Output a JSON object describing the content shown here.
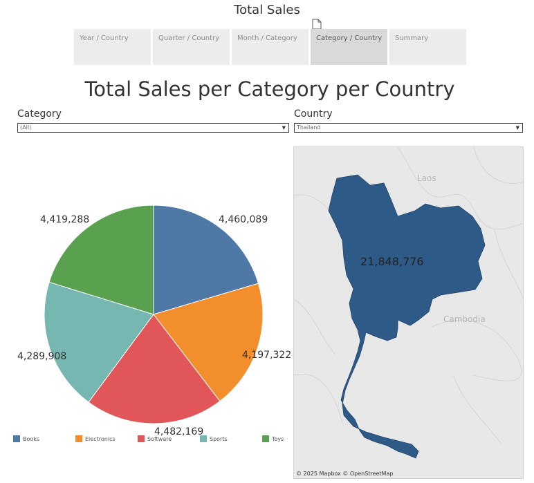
{
  "header": {
    "title": "Total Sales"
  },
  "tabs": [
    {
      "label": "Year / Country",
      "active": false
    },
    {
      "label": "Quarter / Country",
      "active": false
    },
    {
      "label": "Month / Category",
      "active": false
    },
    {
      "label": "Category / Country",
      "active": true
    },
    {
      "label": "Summary",
      "active": false
    }
  ],
  "dashboard": {
    "title": "Total Sales per Category per Country"
  },
  "filters": {
    "category": {
      "label": "Category",
      "value": "(All)"
    },
    "country": {
      "label": "Country",
      "value": "Thailand"
    }
  },
  "chart_data": {
    "type": "pie",
    "categories": [
      "Books",
      "Electronics",
      "Software",
      "Sports",
      "Toys"
    ],
    "values": [
      4460089,
      4197322,
      4482169,
      4289908,
      4419288
    ],
    "labels": [
      "4,460,089",
      "4,197,322",
      "4,482,169",
      "4,289,908",
      "4,419,288"
    ],
    "colors": [
      "#4e79a7",
      "#f28e2b",
      "#e15759",
      "#76b7b2",
      "#59a14f"
    ],
    "legend": "bottom"
  },
  "map": {
    "total": "21,848,776",
    "selected_country": "Thailand",
    "country_labels": [
      "Laos",
      "Cambodia"
    ],
    "attribution": "© 2025 Mapbox  © OpenStreetMap",
    "fill_color": "#2e5a88",
    "background_color": "#e8e8e8"
  }
}
